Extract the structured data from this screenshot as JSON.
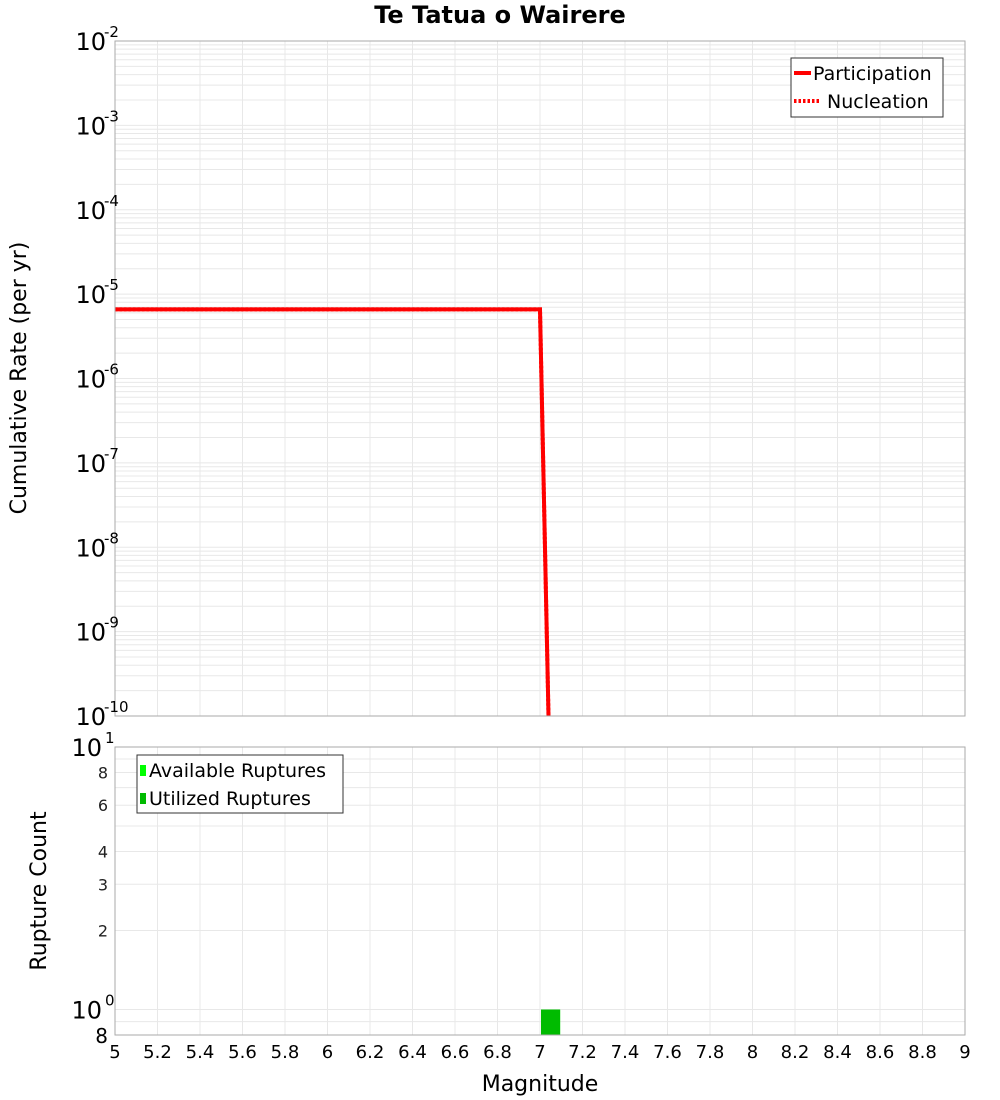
{
  "title": "Te Tatua o Wairere",
  "colors": {
    "participation": "#ff0000",
    "nucleation": "#ff0000",
    "available": "#00ff00",
    "utilized": "#00bb00",
    "grid": "#e8e8e8",
    "frame": "#aaaaaa"
  },
  "top_plot": {
    "ylabel": "Cumulative Rate (per yr)",
    "yticks": [
      {
        "base": "10",
        "exp": "-2"
      },
      {
        "base": "10",
        "exp": "-3"
      },
      {
        "base": "10",
        "exp": "-4"
      },
      {
        "base": "10",
        "exp": "-5"
      },
      {
        "base": "10",
        "exp": "-6"
      },
      {
        "base": "10",
        "exp": "-7"
      },
      {
        "base": "10",
        "exp": "-8"
      },
      {
        "base": "10",
        "exp": "-9"
      },
      {
        "base": "10",
        "exp": "-10"
      }
    ],
    "legend": [
      {
        "label": "Participation",
        "style": "solid"
      },
      {
        "label": "Nucleation",
        "style": "dotted"
      }
    ]
  },
  "bottom_plot": {
    "ylabel": "Rupture Count",
    "yticks_major": [
      {
        "base": "10",
        "exp": "1"
      },
      {
        "base": "10",
        "exp": "0"
      }
    ],
    "yticks_minor": [
      "8",
      "6",
      "4",
      "3",
      "2"
    ],
    "ytick_bottom": "8",
    "legend": [
      {
        "label": "Available Ruptures"
      },
      {
        "label": "Utilized Ruptures"
      }
    ]
  },
  "xaxis": {
    "label": "Magnitude",
    "ticks": [
      "5",
      "5.2",
      "5.4",
      "5.6",
      "5.8",
      "6",
      "6.2",
      "6.4",
      "6.6",
      "6.8",
      "7",
      "7.2",
      "7.4",
      "7.6",
      "7.8",
      "8",
      "8.2",
      "8.4",
      "8.6",
      "8.8",
      "9"
    ]
  },
  "chart_data": [
    {
      "type": "line",
      "title": "Te Tatua o Wairere",
      "xlabel": "Magnitude",
      "ylabel": "Cumulative Rate (per yr)",
      "yscale": "log",
      "xlim": [
        5,
        9
      ],
      "ylim": [
        1e-10,
        0.01
      ],
      "grid": true,
      "legend_position": "upper right",
      "series": [
        {
          "name": "Participation",
          "style": "solid",
          "color": "#ff0000",
          "x": [
            5.0,
            7.0,
            7.04
          ],
          "y": [
            6.6e-06,
            6.6e-06,
            1e-10
          ]
        },
        {
          "name": "Nucleation",
          "style": "dotted",
          "color": "#ff0000",
          "x": [
            5.0,
            7.0,
            7.04
          ],
          "y": [
            6.6e-06,
            6.6e-06,
            1e-10
          ]
        }
      ]
    },
    {
      "type": "bar",
      "xlabel": "Magnitude",
      "ylabel": "Rupture Count",
      "yscale": "log",
      "xlim": [
        5,
        9
      ],
      "ylim": [
        0.8,
        10
      ],
      "grid": true,
      "legend_position": "upper left",
      "series": [
        {
          "name": "Available Ruptures",
          "color": "#00ff00",
          "x": [
            7.05
          ],
          "values": [
            1
          ]
        },
        {
          "name": "Utilized Ruptures",
          "color": "#00bb00",
          "x": [
            7.05
          ],
          "values": [
            1
          ]
        }
      ],
      "bin_width": 0.1
    }
  ]
}
